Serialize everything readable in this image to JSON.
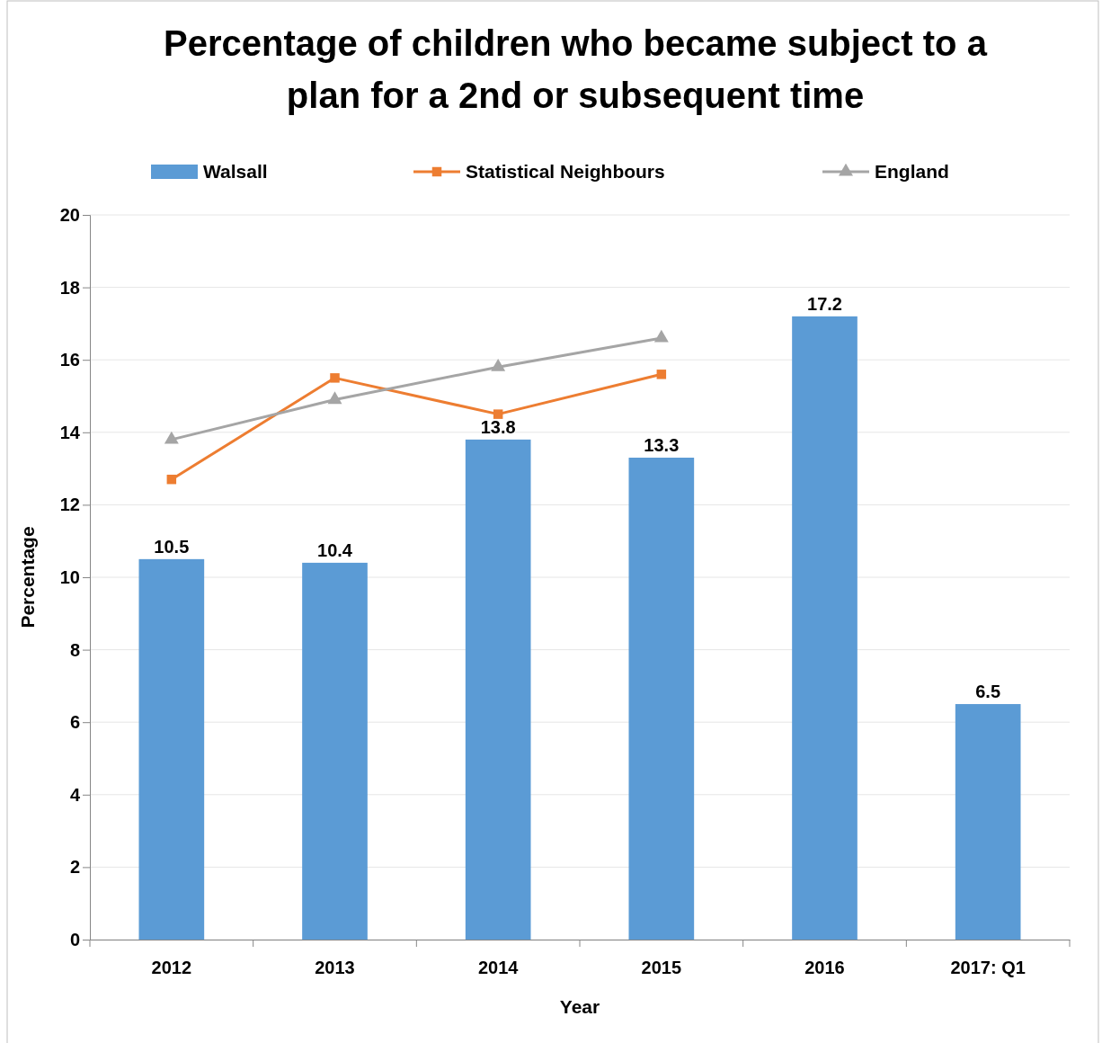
{
  "chart_data": {
    "type": "bar",
    "title": "Percentage of children who became subject to a plan for a 2nd or subsequent time",
    "xlabel": "Year",
    "ylabel": "Percentage",
    "categories": [
      "2012",
      "2013",
      "2014",
      "2015",
      "2016",
      "2017: Q1"
    ],
    "series": [
      {
        "name": "Walsall",
        "color": "#5b9bd5",
        "values": [
          10.5,
          10.4,
          13.8,
          13.3,
          17.2,
          6.5
        ],
        "value_labels": [
          "10.5",
          "10.4",
          "13.8",
          "13.3",
          "17.2",
          "6.5"
        ]
      },
      {
        "name": "Statistical Neighbours",
        "type": "line",
        "color": "#ed7d31",
        "marker": "square",
        "values": [
          12.7,
          15.5,
          14.5,
          15.6,
          null,
          null
        ]
      },
      {
        "name": "England",
        "type": "line",
        "color": "#a5a5a5",
        "marker": "triangle",
        "values": [
          13.8,
          14.9,
          15.8,
          16.6,
          null,
          null
        ]
      }
    ],
    "ylim": [
      0,
      20
    ],
    "yticks": [
      0,
      2,
      4,
      6,
      8,
      10,
      12,
      14,
      16,
      18,
      20
    ],
    "grid": "y",
    "legend": "top",
    "line_style": "solid"
  }
}
